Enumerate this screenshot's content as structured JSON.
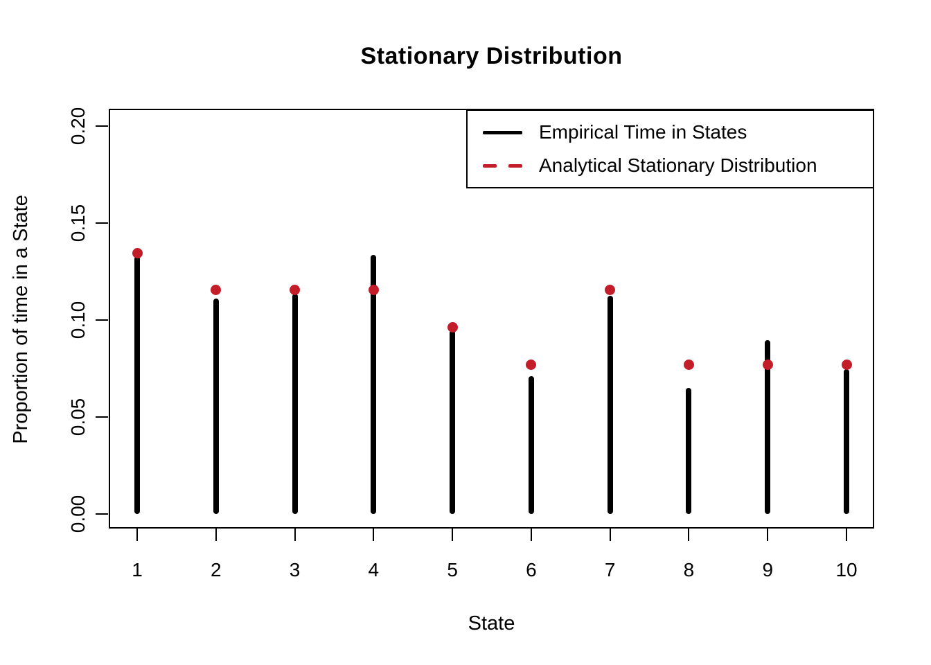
{
  "chart_data": {
    "type": "bar",
    "variant": "stem-and-point (R type='h' spikes with pch=19 points overlay)",
    "title": "Stationary Distribution",
    "xlabel": "State",
    "ylabel": "Proportion of time in a State",
    "categories": [
      "1",
      "2",
      "3",
      "4",
      "5",
      "6",
      "7",
      "8",
      "9",
      "10"
    ],
    "series": [
      {
        "name": "Empirical Time in States",
        "mark": "stem",
        "line_style": "solid",
        "color": "#000000",
        "values": [
          0.133,
          0.111,
          0.1135,
          0.1335,
          0.0945,
          0.071,
          0.1125,
          0.065,
          0.0895,
          0.0745
        ]
      },
      {
        "name": "Analytical Stationary Distribution",
        "mark": "point",
        "line_style": "dashed",
        "color": "#C41D2A",
        "values": [
          0.1346,
          0.1154,
          0.1154,
          0.1154,
          0.0962,
          0.0769,
          0.1154,
          0.0769,
          0.0769,
          0.0769
        ]
      }
    ],
    "yticks": [
      {
        "v": 0.0,
        "label": "0.00"
      },
      {
        "v": 0.05,
        "label": "0.05"
      },
      {
        "v": 0.1,
        "label": "0.10"
      },
      {
        "v": 0.15,
        "label": "0.15"
      },
      {
        "v": 0.2,
        "label": "0.20"
      }
    ],
    "ylim": [
      -0.0075,
      0.209
    ],
    "grid": false,
    "legend_position": "topright",
    "background": "#ffffff",
    "axis_color": "#000000"
  }
}
